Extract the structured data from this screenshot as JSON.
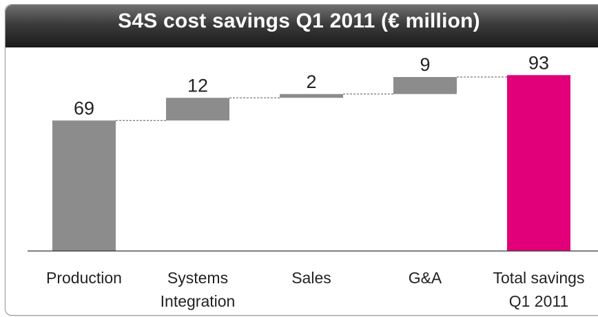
{
  "title": "S4S cost savings Q1 2011 (€ million)",
  "colors": {
    "bar": "#8c8c8c",
    "total": "#e2007a",
    "title_bg": "#3a3a3a",
    "title_text": "#ffffff",
    "connector": "#555555",
    "baseline": "#333333"
  },
  "chart_data": {
    "type": "bar",
    "subtype": "waterfall",
    "title": "S4S cost savings Q1 2011 (€ million)",
    "categories": [
      [
        "Production"
      ],
      [
        "Systems",
        "Integration"
      ],
      [
        "Sales"
      ],
      [
        "G&A"
      ],
      [
        "Total savings",
        "Q1 2011"
      ]
    ],
    "values": [
      69,
      12,
      2,
      9,
      93
    ],
    "value_labels": [
      "69",
      "12",
      "2",
      "9",
      "93"
    ],
    "is_total": [
      false,
      false,
      false,
      false,
      true
    ],
    "ylim": [
      0,
      100
    ],
    "grid": false,
    "legend": "none"
  }
}
